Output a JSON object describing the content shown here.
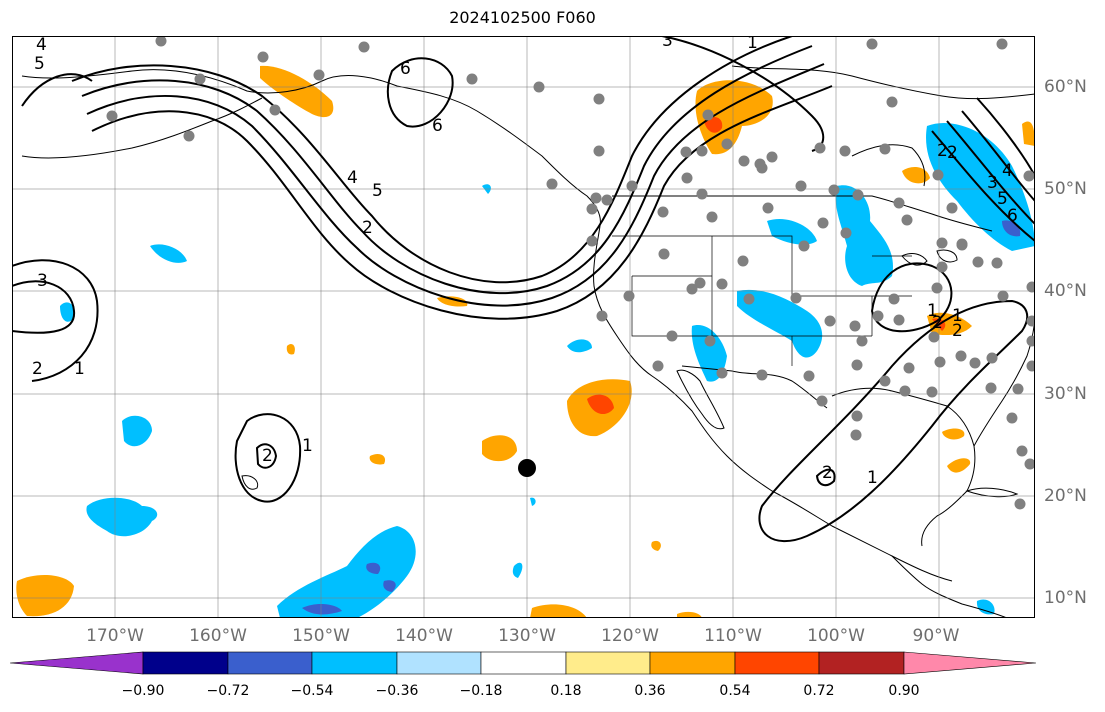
{
  "title": "2024102500 F060",
  "lon_labels": [
    "170°W",
    "160°W",
    "150°W",
    "140°W",
    "130°W",
    "120°W",
    "110°W",
    "100°W",
    "90°W"
  ],
  "lat_labels": [
    "60°N",
    "50°N",
    "40°N",
    "30°N",
    "20°N",
    "10°N"
  ],
  "contour_labels": [
    "4",
    "5",
    "6",
    "6",
    "3",
    "1",
    "4",
    "5",
    "2",
    "2",
    "3",
    "2",
    "1",
    "2",
    "1",
    "2",
    "1",
    "2",
    "1",
    "2",
    "3",
    "4",
    "5",
    "6",
    "1",
    "2"
  ],
  "colorbar": {
    "tick_labels": [
      "−0.90",
      "−0.72",
      "−0.54",
      "−0.36",
      "−0.18",
      "0.18",
      "0.36",
      "0.54",
      "0.72",
      "0.90"
    ],
    "colors": [
      "#9932cc",
      "#00008b",
      "#3a5fcd",
      "#00bfff",
      "#b0e2ff",
      "#ffffff",
      "#ffec8b",
      "#ffa500",
      "#ff4500",
      "#b22222",
      "#ff88aa"
    ]
  },
  "shading_colors": {
    "cyan": "#00bfff",
    "blue": "#3a5fcd",
    "orange": "#ffa500",
    "red": "#ff4500"
  },
  "station_color": "#808080"
}
